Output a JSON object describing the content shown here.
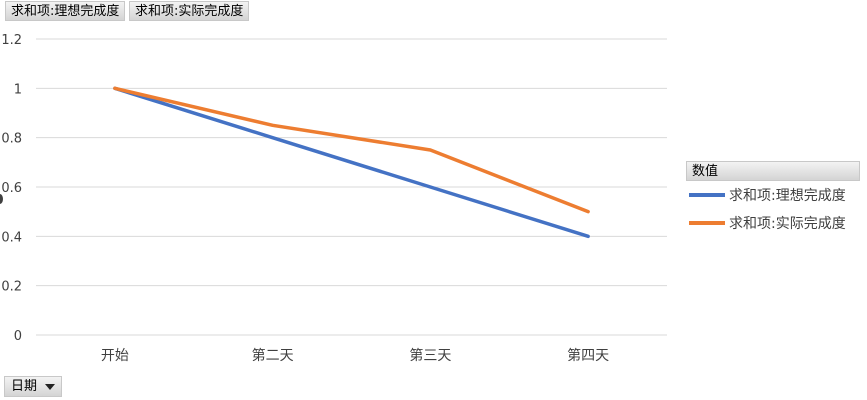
{
  "field_buttons": [
    "求和项:理想完成度",
    "求和项:实际完成度"
  ],
  "legend": {
    "title": "数值",
    "items": [
      "求和项:理想完成度",
      "求和项:实际完成度"
    ]
  },
  "filter": {
    "label": "日期"
  },
  "colors": {
    "series1": "#4472c4",
    "series2": "#ed7d31",
    "grid": "#d9d9d9"
  },
  "chart_data": {
    "type": "line",
    "categories": [
      "开始",
      "第二天",
      "第三天",
      "第四天"
    ],
    "series": [
      {
        "name": "求和项:理想完成度",
        "values": [
          1,
          0.8,
          0.6,
          0.4
        ]
      },
      {
        "name": "求和项:实际完成度",
        "values": [
          1,
          0.85,
          0.75,
          0.5
        ]
      }
    ],
    "ylim": [
      0,
      1.2
    ],
    "yticks": [
      "0",
      "0.2",
      "0.4",
      "0.6",
      "0.8",
      "1",
      "1.2"
    ],
    "grid": true,
    "legend_position": "right"
  }
}
